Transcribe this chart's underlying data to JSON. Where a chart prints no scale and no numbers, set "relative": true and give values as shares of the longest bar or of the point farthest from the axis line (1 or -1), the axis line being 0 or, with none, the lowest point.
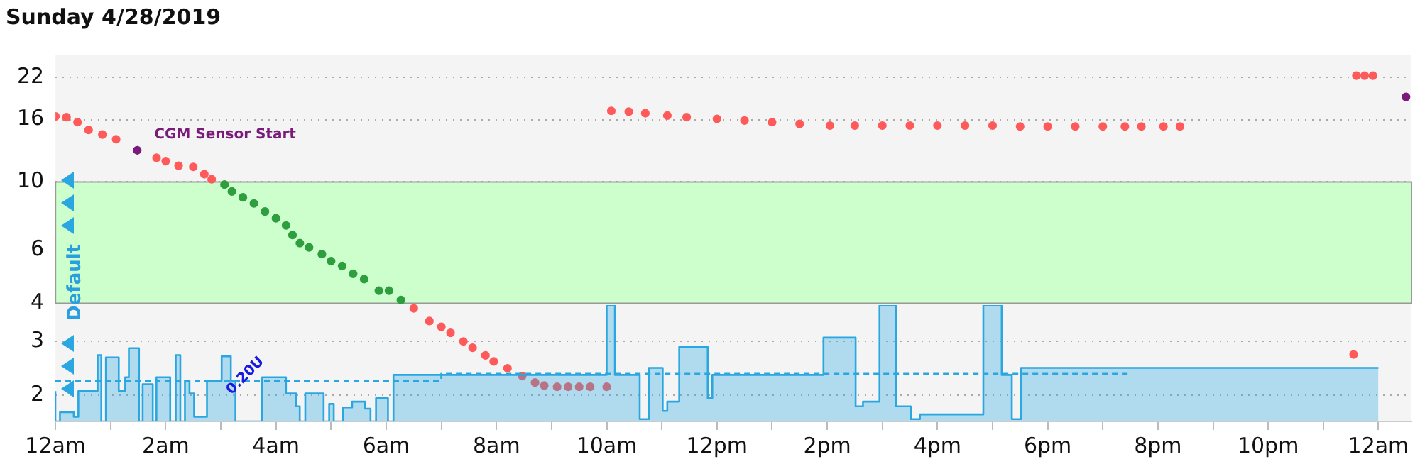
{
  "chart_data": [
    {
      "type": "scatter",
      "title": "Sunday 4/28/2019",
      "xlim": [
        "2019-04-28T00:00",
        "2019-04-29T00:36"
      ],
      "xticks": [
        {
          "value": "2019-04-28T00:00",
          "label": "12am"
        },
        {
          "value": "2019-04-28T01:00",
          "label": null
        },
        {
          "value": "2019-04-28T02:00",
          "label": "2am"
        },
        {
          "value": "2019-04-28T03:00",
          "label": null
        },
        {
          "value": "2019-04-28T04:00",
          "label": "4am"
        },
        {
          "value": "2019-04-28T05:00",
          "label": null
        },
        {
          "value": "2019-04-28T06:00",
          "label": "6am"
        },
        {
          "value": "2019-04-28T07:00",
          "label": null
        },
        {
          "value": "2019-04-28T08:00",
          "label": "8am"
        },
        {
          "value": "2019-04-28T09:00",
          "label": null
        },
        {
          "value": "2019-04-28T10:00",
          "label": "10am"
        },
        {
          "value": "2019-04-28T11:00",
          "label": null
        },
        {
          "value": "2019-04-28T12:00",
          "label": "12pm"
        },
        {
          "value": "2019-04-28T13:00",
          "label": null
        },
        {
          "value": "2019-04-28T14:00",
          "label": "2pm"
        },
        {
          "value": "2019-04-28T15:00",
          "label": null
        },
        {
          "value": "2019-04-28T16:00",
          "label": "4pm"
        },
        {
          "value": "2019-04-28T17:00",
          "label": null
        },
        {
          "value": "2019-04-28T18:00",
          "label": "6pm"
        },
        {
          "value": "2019-04-28T19:00",
          "label": null
        },
        {
          "value": "2019-04-28T20:00",
          "label": "8pm"
        },
        {
          "value": "2019-04-28T21:00",
          "label": null
        },
        {
          "value": "2019-04-28T22:00",
          "label": "10pm"
        },
        {
          "value": "2019-04-28T23:00",
          "label": null
        },
        {
          "value": "2019-04-29T00:00",
          "label": "12am"
        }
      ],
      "ylim": [
        1.64,
        26
      ],
      "yticks": [
        2,
        3,
        4,
        6,
        10,
        16,
        22
      ],
      "log": true,
      "grid": "y",
      "marker": "circle",
      "bands": [
        {
          "axis": "y",
          "from": 4,
          "to": 10,
          "color": "#ccffcc"
        }
      ],
      "annotations": [
        {
          "text": "CGM Sensor Start",
          "x": "2019-04-28T01:29",
          "y": 12.7
        },
        "Default"
      ],
      "series": [
        {
          "color": "#ff5a5a",
          "x": [
            "2019-04-28T00:00",
            "2019-04-28T00:12",
            "2019-04-28T00:24",
            "2019-04-28T00:36",
            "2019-04-28T00:51",
            "2019-04-28T01:06",
            "2019-04-28T01:50",
            "2019-04-28T02:00",
            "2019-04-28T02:14",
            "2019-04-28T02:30",
            "2019-04-28T02:42",
            "2019-04-28T02:50",
            "2019-04-28T06:30",
            "2019-04-28T06:47",
            "2019-04-28T07:00",
            "2019-04-28T07:10",
            "2019-04-28T07:24",
            "2019-04-28T07:34",
            "2019-04-28T07:48",
            "2019-04-28T07:57",
            "2019-04-28T08:12",
            "2019-04-28T08:28",
            "2019-04-28T08:42",
            "2019-04-28T08:52",
            "2019-04-28T09:06",
            "2019-04-28T09:18",
            "2019-04-28T09:30",
            "2019-04-28T09:42",
            "2019-04-28T10:00",
            "2019-04-28T10:05",
            "2019-04-28T10:24",
            "2019-04-28T10:42",
            "2019-04-28T11:06",
            "2019-04-28T11:27",
            "2019-04-28T12:00",
            "2019-04-28T12:30",
            "2019-04-28T13:00",
            "2019-04-28T13:30",
            "2019-04-28T14:03",
            "2019-04-28T14:30",
            "2019-04-28T15:00",
            "2019-04-28T15:30",
            "2019-04-28T16:00",
            "2019-04-28T16:30",
            "2019-04-28T17:00",
            "2019-04-28T17:30",
            "2019-04-28T18:00",
            "2019-04-28T18:30",
            "2019-04-28T19:00",
            "2019-04-28T19:24",
            "2019-04-28T19:42",
            "2019-04-28T20:06",
            "2019-04-28T20:24",
            "2019-04-28T23:33",
            "2019-04-28T23:36",
            "2019-04-28T23:45",
            "2019-04-28T23:54"
          ],
          "values": [
            16.4,
            16.3,
            15.7,
            14.8,
            14.3,
            13.8,
            12.0,
            11.7,
            11.3,
            11.2,
            10.6,
            10.2,
            3.85,
            3.5,
            3.35,
            3.2,
            3.0,
            2.86,
            2.7,
            2.58,
            2.45,
            2.31,
            2.2,
            2.15,
            2.13,
            2.13,
            2.13,
            2.13,
            2.13,
            17.1,
            17.0,
            16.8,
            16.5,
            16.3,
            16.1,
            15.9,
            15.7,
            15.5,
            15.3,
            15.3,
            15.3,
            15.3,
            15.3,
            15.3,
            15.3,
            15.2,
            15.2,
            15.2,
            15.2,
            15.2,
            15.2,
            15.2,
            15.2,
            2.72,
            22.3,
            22.3,
            22.3
          ]
        },
        {
          "color": "#2e9e3e",
          "x": [
            "2019-04-28T03:04",
            "2019-04-28T03:12",
            "2019-04-28T03:24",
            "2019-04-28T03:36",
            "2019-04-28T03:48",
            "2019-04-28T04:00",
            "2019-04-28T04:11",
            "2019-04-28T04:18",
            "2019-04-28T04:26",
            "2019-04-28T04:36",
            "2019-04-28T04:50",
            "2019-04-28T05:00",
            "2019-04-28T05:12",
            "2019-04-28T05:24",
            "2019-04-28T05:36",
            "2019-04-28T05:52",
            "2019-04-28T06:03",
            "2019-04-28T06:16"
          ],
          "values": [
            9.8,
            9.3,
            8.9,
            8.5,
            8.0,
            7.6,
            7.2,
            6.7,
            6.3,
            6.1,
            5.8,
            5.5,
            5.3,
            5.0,
            4.8,
            4.4,
            4.4,
            4.1
          ]
        },
        {
          "color": "#7a1a7a",
          "x": [
            "2019-04-28T01:29",
            "2019-04-29T00:30"
          ],
          "values": [
            12.7,
            19.0
          ]
        }
      ]
    },
    {
      "type": "area",
      "relative": true,
      "xlim": [
        "2019-04-28T00:00",
        "2019-04-29T00:36"
      ],
      "annotations": [
        "0.20U"
      ],
      "series": [
        {
          "color": "#2aa7e0",
          "x": [
            "2019-04-28T00:00",
            "2019-04-28T00:05",
            "2019-04-28T00:20",
            "2019-04-28T00:25",
            "2019-04-28T00:46",
            "2019-04-28T00:50",
            "2019-04-28T00:55",
            "2019-04-28T01:09",
            "2019-04-28T01:16",
            "2019-04-28T01:20",
            "2019-04-28T01:31",
            "2019-04-28T01:35",
            "2019-04-28T01:46",
            "2019-04-28T01:50",
            "2019-04-28T02:05",
            "2019-04-28T02:11",
            "2019-04-28T02:16",
            "2019-04-28T02:21",
            "2019-04-28T02:26",
            "2019-04-28T02:31",
            "2019-04-28T02:45",
            "2019-04-28T03:01",
            "2019-04-28T03:11",
            "2019-04-28T03:16",
            "2019-04-28T03:45",
            "2019-04-28T04:11",
            "2019-04-28T04:22",
            "2019-04-28T04:26",
            "2019-04-28T04:32",
            "2019-04-28T04:52",
            "2019-04-28T04:58",
            "2019-04-28T05:03",
            "2019-04-28T05:13",
            "2019-04-28T05:23",
            "2019-04-28T05:37",
            "2019-04-28T05:43",
            "2019-04-28T05:49",
            "2019-04-28T06:02",
            "2019-04-28T06:08",
            "2019-04-28T10:00",
            "2019-04-28T10:09",
            "2019-04-28T10:36",
            "2019-04-28T10:46",
            "2019-04-28T11:01",
            "2019-04-28T11:06",
            "2019-04-28T11:19",
            "2019-04-28T11:50",
            "2019-04-28T11:55",
            "2019-04-28T13:56",
            "2019-04-28T14:31",
            "2019-04-28T14:39",
            "2019-04-28T14:57",
            "2019-04-28T15:15",
            "2019-04-28T15:31",
            "2019-04-28T15:41",
            "2019-04-28T16:50",
            "2019-04-28T17:10",
            "2019-04-28T17:21",
            "2019-04-28T17:31",
            "2019-04-28T19:27",
            "2019-04-29T00:00"
          ],
          "values": [
            0.26,
            0,
            0.08,
            0.04,
            0.26,
            0.57,
            0,
            0.55,
            0.26,
            0.38,
            0.63,
            0,
            0.32,
            0,
            0.38,
            0,
            0.57,
            0,
            0.35,
            0.24,
            0.04,
            0.35,
            0.56,
            0.35,
            0,
            0.38,
            0.24,
            0.13,
            0,
            0.24,
            0,
            0.15,
            0,
            0.12,
            0.17,
            0.11,
            0,
            0.2,
            0,
            0.4,
            1,
            0.4,
            0.02,
            0.46,
            0.09,
            0.17,
            0.64,
            0.2,
            0.4,
            0.72,
            0.13,
            0.17,
            1,
            0.13,
            0.02,
            0.06,
            1,
            0.4,
            0.02,
            0.46,
            0.46
          ]
        },
        {
          "type": "line",
          "line_style": "dashed",
          "color": "#2aa7e0",
          "x": [
            "2019-04-28T00:00",
            "2019-04-28T07:00",
            "2019-04-28T07:00",
            "2019-04-28T19:27"
          ],
          "values": [
            0.35,
            0.35,
            0.41,
            0.41
          ]
        }
      ]
    }
  ]
}
